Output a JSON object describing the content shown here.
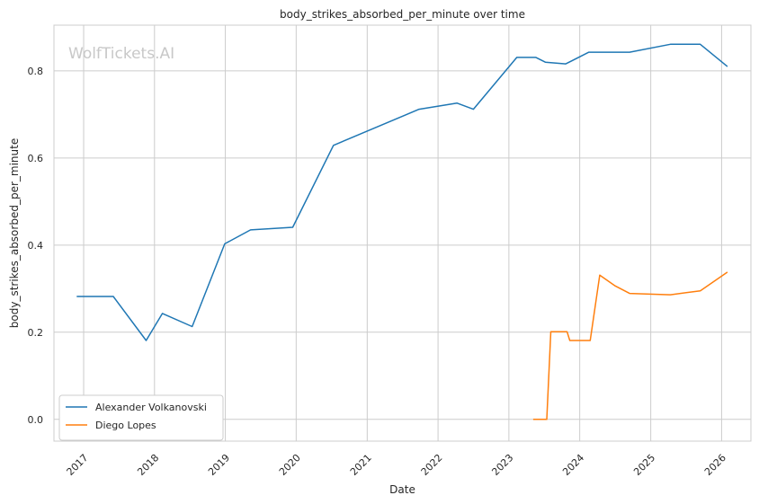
{
  "chart_data": {
    "type": "line",
    "title": "body_strikes_absorbed_per_minute over time",
    "xlabel": "Date",
    "ylabel": "body_strikes_absorbed_per_minute",
    "watermark": "WolfTickets.AI",
    "x_ticks": [
      "2017",
      "2018",
      "2019",
      "2020",
      "2021",
      "2022",
      "2023",
      "2024",
      "2025",
      "2026"
    ],
    "y_ticks": [
      "0.0",
      "0.2",
      "0.4",
      "0.6",
      "0.8"
    ],
    "xlim": [
      "2016-08-01",
      "2026-06-01"
    ],
    "ylim": [
      -0.05,
      0.905
    ],
    "grid": true,
    "legend_position": "lower-left",
    "series": [
      {
        "name": "Alexander Volkanovski",
        "color": "#1f77b4",
        "points": [
          [
            "2016-11-26",
            0.282
          ],
          [
            "2017-06-03",
            0.282
          ],
          [
            "2017-11-19",
            0.181
          ],
          [
            "2018-02-11",
            0.243
          ],
          [
            "2018-07-14",
            0.213
          ],
          [
            "2018-12-29",
            0.403
          ],
          [
            "2019-05-11",
            0.435
          ],
          [
            "2019-12-14",
            0.441
          ],
          [
            "2020-07-11",
            0.629
          ],
          [
            "2021-09-25",
            0.712
          ],
          [
            "2022-04-09",
            0.726
          ],
          [
            "2022-07-02",
            0.712
          ],
          [
            "2023-02-11",
            0.831
          ],
          [
            "2023-05-20",
            0.831
          ],
          [
            "2023-07-08",
            0.82
          ],
          [
            "2023-10-21",
            0.816
          ],
          [
            "2024-02-17",
            0.843
          ],
          [
            "2024-09-14",
            0.843
          ],
          [
            "2025-04-12",
            0.861
          ],
          [
            "2025-09-13",
            0.861
          ],
          [
            "2026-01-31",
            0.81
          ]
        ]
      },
      {
        "name": "Diego Lopes",
        "color": "#ff7f0e",
        "points": [
          [
            "2023-05-06",
            0.0
          ],
          [
            "2023-07-15",
            0.0
          ],
          [
            "2023-08-05",
            0.201
          ],
          [
            "2023-10-28",
            0.201
          ],
          [
            "2023-11-11",
            0.181
          ],
          [
            "2024-02-24",
            0.181
          ],
          [
            "2024-04-13",
            0.331
          ],
          [
            "2024-06-29",
            0.307
          ],
          [
            "2024-09-14",
            0.289
          ],
          [
            "2025-04-12",
            0.286
          ],
          [
            "2025-09-13",
            0.295
          ],
          [
            "2026-01-31",
            0.338
          ]
        ]
      }
    ]
  }
}
